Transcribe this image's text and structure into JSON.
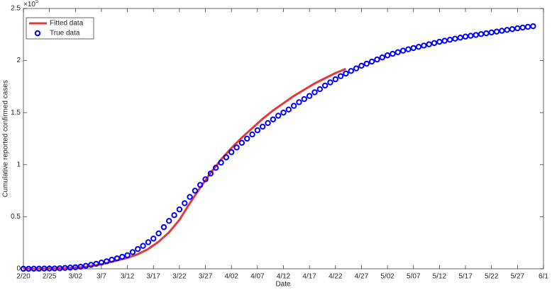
{
  "chart_data": {
    "type": "line",
    "x_label": "Date",
    "y_label": "Cumulative reported confirmed cases",
    "y_multiplier": "×10",
    "y_multiplier_exp": "5",
    "xlim": [
      0,
      100
    ],
    "xticks": [
      {
        "value": 0,
        "label": "2/20"
      },
      {
        "value": 5,
        "label": "2/25"
      },
      {
        "value": 10,
        "label": "3/02"
      },
      {
        "value": 15,
        "label": "3/7"
      },
      {
        "value": 20,
        "label": "3/12"
      },
      {
        "value": 25,
        "label": "3/17"
      },
      {
        "value": 30,
        "label": "3/22"
      },
      {
        "value": 35,
        "label": "3/27"
      },
      {
        "value": 40,
        "label": "4/02"
      },
      {
        "value": 45,
        "label": "4/07"
      },
      {
        "value": 50,
        "label": "4/12"
      },
      {
        "value": 55,
        "label": "4/17"
      },
      {
        "value": 60,
        "label": "4/22"
      },
      {
        "value": 65,
        "label": "4/27"
      },
      {
        "value": 70,
        "label": "5/02"
      },
      {
        "value": 75,
        "label": "5/07"
      },
      {
        "value": 80,
        "label": "5/12"
      },
      {
        "value": 85,
        "label": "5/17"
      },
      {
        "value": 90,
        "label": "5/22"
      },
      {
        "value": 95,
        "label": "5/27"
      },
      {
        "value": 100,
        "label": "6/1"
      }
    ],
    "ylim": [
      0,
      2.5
    ],
    "yticks": [
      0,
      0.5,
      1,
      1.5,
      2,
      2.5
    ],
    "legend": "upper left",
    "series": [
      {
        "name": "Fitted data",
        "color": "#e03a3a",
        "style": "line",
        "x": [
          0,
          2,
          4,
          6,
          8,
          10,
          12,
          14,
          16,
          18,
          20,
          22,
          24,
          26,
          28,
          30,
          32,
          34,
          36,
          38,
          40,
          42,
          44,
          46,
          48,
          50,
          52,
          54,
          56,
          58,
          60,
          62
        ],
        "values": [
          0,
          0,
          0.001,
          0.002,
          0.005,
          0.01,
          0.02,
          0.035,
          0.055,
          0.08,
          0.105,
          0.14,
          0.19,
          0.26,
          0.35,
          0.47,
          0.63,
          0.78,
          0.92,
          1.05,
          1.16,
          1.26,
          1.35,
          1.44,
          1.52,
          1.59,
          1.66,
          1.72,
          1.78,
          1.83,
          1.88,
          1.92
        ]
      },
      {
        "name": "True data",
        "color": "#0000ff",
        "style": "marker",
        "x": [
          0,
          1,
          2,
          3,
          4,
          5,
          6,
          7,
          8,
          9,
          10,
          11,
          12,
          13,
          14,
          15,
          16,
          17,
          18,
          19,
          20,
          21,
          22,
          23,
          24,
          25,
          26,
          27,
          28,
          29,
          30,
          31,
          32,
          33,
          34,
          35,
          36,
          37,
          38,
          39,
          40,
          41,
          42,
          43,
          44,
          45,
          46,
          47,
          48,
          49,
          50,
          51,
          52,
          53,
          54,
          55,
          56,
          57,
          58,
          59,
          60,
          61,
          62,
          63,
          64,
          65,
          66,
          67,
          68,
          69,
          70,
          71,
          72,
          73,
          74,
          75,
          76,
          77,
          78,
          79,
          80,
          81,
          82,
          83,
          84,
          85,
          86,
          87,
          88,
          89,
          90,
          91,
          92,
          93,
          94,
          95,
          96,
          97,
          98
        ],
        "values": [
          0,
          0,
          0.001,
          0.001,
          0.002,
          0.002,
          0.003,
          0.005,
          0.008,
          0.011,
          0.015,
          0.02,
          0.028,
          0.038,
          0.048,
          0.06,
          0.072,
          0.087,
          0.1,
          0.115,
          0.13,
          0.16,
          0.19,
          0.22,
          0.255,
          0.29,
          0.34,
          0.4,
          0.46,
          0.515,
          0.57,
          0.63,
          0.69,
          0.75,
          0.805,
          0.86,
          0.915,
          0.97,
          1.02,
          1.07,
          1.12,
          1.165,
          1.21,
          1.25,
          1.29,
          1.33,
          1.365,
          1.4,
          1.435,
          1.47,
          1.5,
          1.53,
          1.565,
          1.6,
          1.63,
          1.66,
          1.695,
          1.725,
          1.76,
          1.79,
          1.82,
          1.85,
          1.875,
          1.9,
          1.925,
          1.95,
          1.97,
          1.99,
          2.01,
          2.03,
          2.05,
          2.065,
          2.08,
          2.095,
          2.108,
          2.12,
          2.132,
          2.144,
          2.156,
          2.168,
          2.18,
          2.19,
          2.2,
          2.21,
          2.22,
          2.23,
          2.238,
          2.246,
          2.254,
          2.262,
          2.27,
          2.278,
          2.286,
          2.294,
          2.302,
          2.31,
          2.317,
          2.324,
          2.33
        ]
      }
    ]
  }
}
